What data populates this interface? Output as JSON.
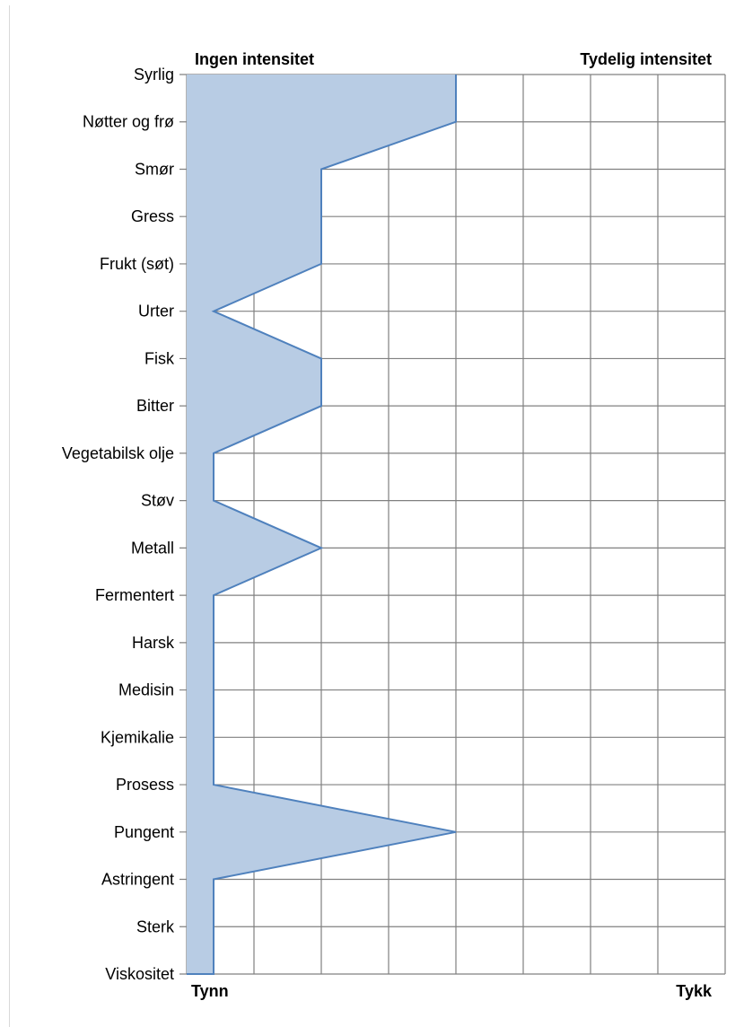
{
  "chart_data": {
    "type": "area",
    "orientation": "horizontal",
    "title": "",
    "top_left_label": "Ingen intensitet",
    "top_right_label": "Tydelig intensitet",
    "bottom_left_label": "Tynn",
    "bottom_right_label": "Tykk",
    "categories": [
      "Syrlig",
      "Nøtter og frø",
      "Smør",
      "Gress",
      "Frukt (søt)",
      "Urter",
      "Fisk",
      "Bitter",
      "Vegetabilsk olje",
      "Støv",
      "Metall",
      "Fermentert",
      "Harsk",
      "Medisin",
      "Kjemikalie",
      "Prosess",
      "Pungent",
      "Astringent",
      "Sterk",
      "Viskositet"
    ],
    "values": [
      4,
      4,
      2,
      2,
      2,
      0.4,
      2,
      2,
      0.4,
      0.4,
      2,
      0.4,
      0.4,
      0.4,
      0.4,
      0.4,
      4,
      0.4,
      0.4,
      0.4
    ],
    "xlim": [
      0,
      8
    ],
    "grid": true,
    "colors": {
      "fill": "#b8cce4",
      "stroke": "#4f81bd",
      "grid": "#808080"
    }
  }
}
